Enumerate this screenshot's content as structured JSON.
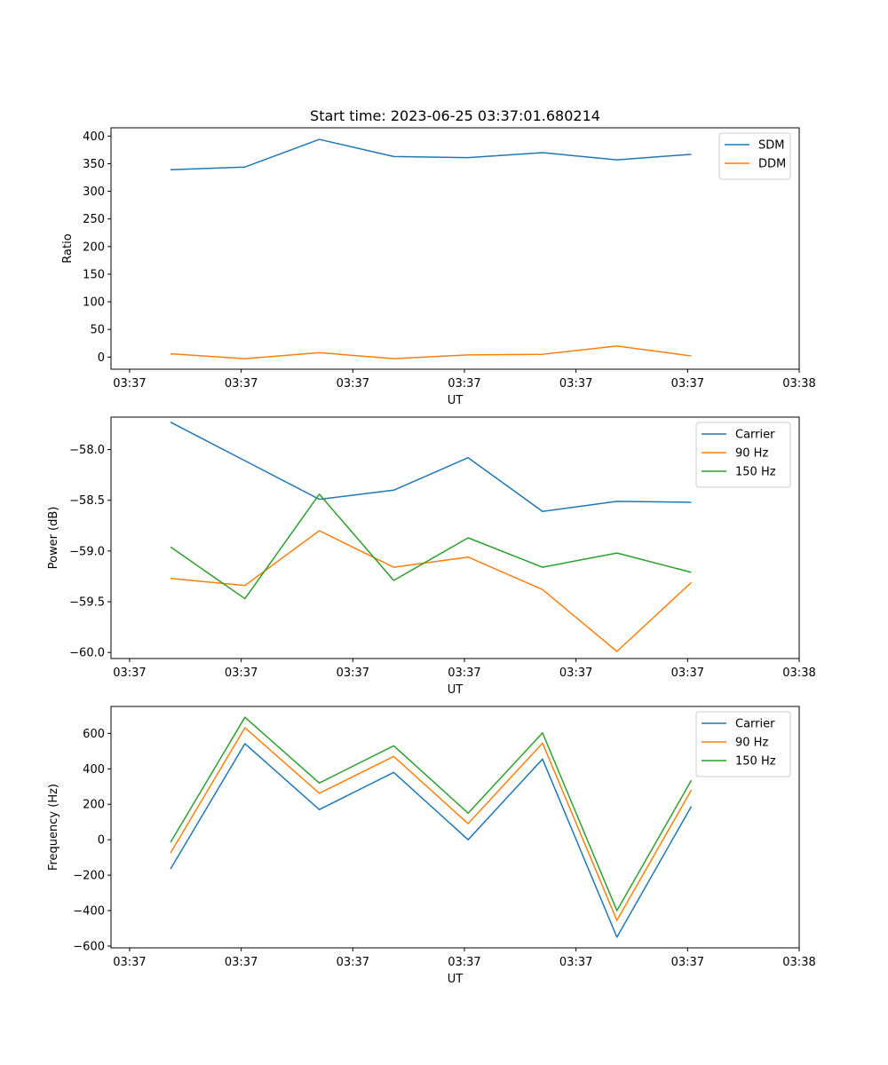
{
  "chart_data": [
    {
      "type": "line",
      "title": "Start time: 2023-06-25 03:37:01.680214",
      "xlabel": "UT",
      "ylabel": "Ratio",
      "x": [
        1,
        2,
        3,
        4,
        5,
        6,
        7,
        8
      ],
      "xlim": [
        0.2,
        9.45
      ],
      "xticks": [
        0.45,
        1.95,
        3.45,
        4.95,
        6.45,
        7.95,
        9.45
      ],
      "xtick_labels": [
        "03:37",
        "03:37",
        "03:37",
        "03:37",
        "03:37",
        "03:37",
        "03:38"
      ],
      "ylim": [
        -22,
        415
      ],
      "yticks": [
        0,
        50,
        100,
        150,
        200,
        250,
        300,
        350,
        400
      ],
      "ytick_labels": [
        "0",
        "50",
        "100",
        "150",
        "200",
        "250",
        "300",
        "350",
        "400"
      ],
      "legend": "top-right",
      "grid": false,
      "series": [
        {
          "name": "SDM",
          "color": "#1f77b4",
          "values": [
            339,
            344,
            394,
            363,
            361,
            370,
            357,
            367
          ]
        },
        {
          "name": "DDM",
          "color": "#ff7f0e",
          "values": [
            6,
            -3,
            8,
            -3,
            4,
            5,
            20,
            2
          ]
        }
      ]
    },
    {
      "type": "line",
      "title": "",
      "xlabel": "UT",
      "ylabel": "Power (dB)",
      "x": [
        1,
        2,
        3,
        4,
        5,
        6,
        7,
        8
      ],
      "xlim": [
        0.2,
        9.45
      ],
      "xticks": [
        0.45,
        1.95,
        3.45,
        4.95,
        6.45,
        7.95,
        9.45
      ],
      "xtick_labels": [
        "03:37",
        "03:37",
        "03:37",
        "03:37",
        "03:37",
        "03:37",
        "03:38"
      ],
      "ylim": [
        -60.06,
        -57.68
      ],
      "yticks": [
        -60.0,
        -59.5,
        -59.0,
        -58.5,
        -58.0
      ],
      "ytick_labels": [
        "−60.0",
        "−59.5",
        "−59.0",
        "−58.5",
        "−58.0"
      ],
      "legend": "top-right",
      "grid": false,
      "series": [
        {
          "name": "Carrier",
          "color": "#1f77b4",
          "values": [
            -57.73,
            -58.11,
            -58.49,
            -58.4,
            -58.08,
            -58.61,
            -58.51,
            -58.52
          ]
        },
        {
          "name": "90 Hz",
          "color": "#ff7f0e",
          "values": [
            -59.27,
            -59.34,
            -58.8,
            -59.16,
            -59.06,
            -59.38,
            -59.99,
            -59.31
          ]
        },
        {
          "name": "150 Hz",
          "color": "#2ca02c",
          "values": [
            -58.96,
            -59.47,
            -58.44,
            -59.29,
            -58.87,
            -59.16,
            -59.02,
            -59.21
          ]
        }
      ]
    },
    {
      "type": "line",
      "title": "",
      "xlabel": "UT",
      "ylabel": "Frequency (Hz)",
      "x": [
        1,
        2,
        3,
        4,
        5,
        6,
        7,
        8
      ],
      "xlim": [
        0.2,
        9.45
      ],
      "xticks": [
        0.45,
        1.95,
        3.45,
        4.95,
        6.45,
        7.95,
        9.45
      ],
      "xtick_labels": [
        "03:37",
        "03:37",
        "03:37",
        "03:37",
        "03:37",
        "03:37",
        "03:38"
      ],
      "ylim": [
        -610,
        752
      ],
      "yticks": [
        -600,
        -400,
        -200,
        0,
        200,
        400,
        600
      ],
      "ytick_labels": [
        "−600",
        "−400",
        "−200",
        "0",
        "200",
        "400",
        "600"
      ],
      "legend": "top-right",
      "grid": false,
      "series": [
        {
          "name": "Carrier",
          "color": "#1f77b4",
          "values": [
            -165,
            542,
            170,
            380,
            0,
            455,
            -550,
            188
          ]
        },
        {
          "name": "90 Hz",
          "color": "#ff7f0e",
          "values": [
            -75,
            632,
            262,
            470,
            91,
            545,
            -455,
            280
          ]
        },
        {
          "name": "150 Hz",
          "color": "#2ca02c",
          "values": [
            -15,
            691,
            320,
            530,
            150,
            603,
            -400,
            335
          ]
        }
      ]
    }
  ]
}
